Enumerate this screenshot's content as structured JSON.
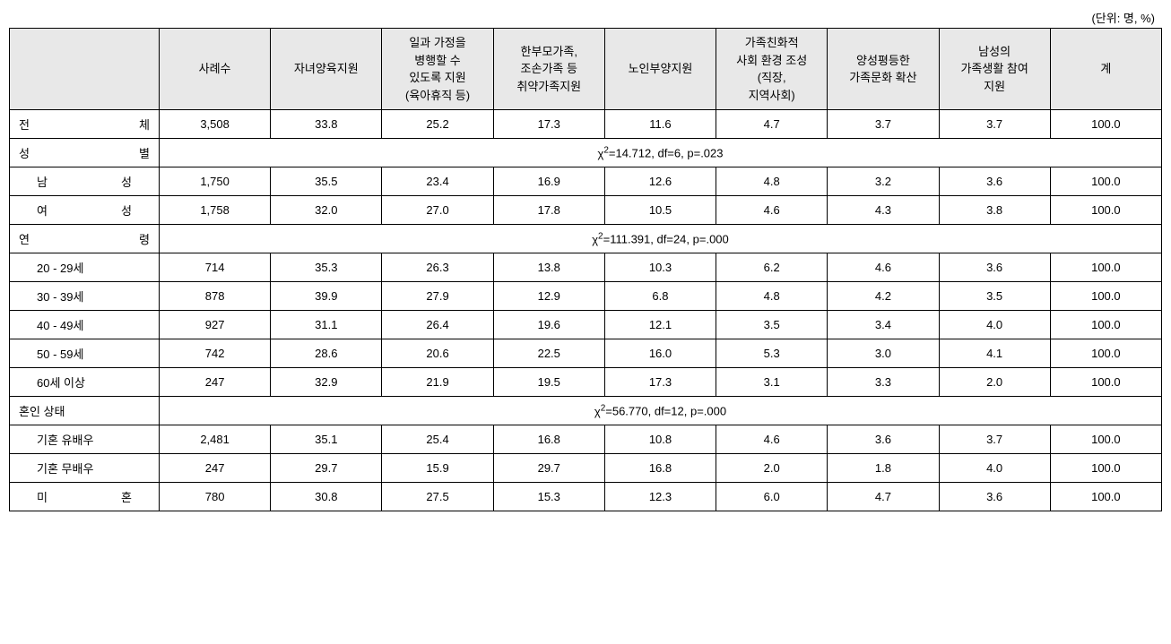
{
  "unit_label": "(단위: 명, %)",
  "headers": {
    "col0": "",
    "col1": "사례수",
    "col2": "자녀양육지원",
    "col3": "일과 가정을\n병행할 수\n있도록 지원\n(육아휴직 등)",
    "col4": "한부모가족,\n조손가족 등\n취약가족지원",
    "col5": "노인부양지원",
    "col6": "가족친화적\n사회 환경 조성\n(직장,\n지역사회)",
    "col7": "양성평등한\n가족문화 확산",
    "col8": "남성의\n가족생활 참여\n지원",
    "col9": "계"
  },
  "sections": {
    "total": {
      "label": "전 체",
      "values": [
        "3,508",
        "33.8",
        "25.2",
        "17.3",
        "11.6",
        "4.7",
        "3.7",
        "3.7",
        "100.0"
      ]
    },
    "gender": {
      "label": "성 별",
      "stat_chi2": "14.712",
      "stat_df": "6",
      "stat_p": ".023",
      "rows": [
        {
          "label": "남 성",
          "values": [
            "1,750",
            "35.5",
            "23.4",
            "16.9",
            "12.6",
            "4.8",
            "3.2",
            "3.6",
            "100.0"
          ]
        },
        {
          "label": "여 성",
          "values": [
            "1,758",
            "32.0",
            "27.0",
            "17.8",
            "10.5",
            "4.6",
            "4.3",
            "3.8",
            "100.0"
          ]
        }
      ]
    },
    "age": {
      "label": "연 령",
      "stat_chi2": "111.391",
      "stat_df": "24",
      "stat_p": ".000",
      "rows": [
        {
          "label": "20 - 29세",
          "values": [
            "714",
            "35.3",
            "26.3",
            "13.8",
            "10.3",
            "6.2",
            "4.6",
            "3.6",
            "100.0"
          ]
        },
        {
          "label": "30 - 39세",
          "values": [
            "878",
            "39.9",
            "27.9",
            "12.9",
            "6.8",
            "4.8",
            "4.2",
            "3.5",
            "100.0"
          ]
        },
        {
          "label": "40 - 49세",
          "values": [
            "927",
            "31.1",
            "26.4",
            "19.6",
            "12.1",
            "3.5",
            "3.4",
            "4.0",
            "100.0"
          ]
        },
        {
          "label": "50 - 59세",
          "values": [
            "742",
            "28.6",
            "20.6",
            "22.5",
            "16.0",
            "5.3",
            "3.0",
            "4.1",
            "100.0"
          ]
        },
        {
          "label": "60세 이상",
          "values": [
            "247",
            "32.9",
            "21.9",
            "19.5",
            "17.3",
            "3.1",
            "3.3",
            "2.0",
            "100.0"
          ]
        }
      ]
    },
    "marital": {
      "label": "혼인 상태",
      "stat_chi2": "56.770",
      "stat_df": "12",
      "stat_p": ".000",
      "rows": [
        {
          "label": "기혼 유배우",
          "values": [
            "2,481",
            "35.1",
            "25.4",
            "16.8",
            "10.8",
            "4.6",
            "3.6",
            "3.7",
            "100.0"
          ]
        },
        {
          "label": "기혼 무배우",
          "values": [
            "247",
            "29.7",
            "15.9",
            "29.7",
            "16.8",
            "2.0",
            "1.8",
            "4.0",
            "100.0"
          ]
        },
        {
          "label": "미 혼",
          "values": [
            "780",
            "30.8",
            "27.5",
            "15.3",
            "12.3",
            "6.0",
            "4.7",
            "3.6",
            "100.0"
          ]
        }
      ]
    }
  },
  "styling": {
    "header_background": "#e8e8e8",
    "border_color": "#000000",
    "font_size": 13,
    "background_color": "#ffffff",
    "text_color": "#000000"
  }
}
